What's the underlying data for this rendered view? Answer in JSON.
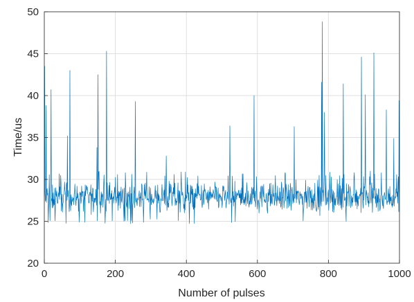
{
  "chart_data": {
    "type": "line",
    "title": "",
    "xlabel": "Number of pulses",
    "ylabel": "Time/us",
    "xlim": [
      0,
      1000
    ],
    "ylim": [
      20,
      50
    ],
    "xticks": [
      0,
      200,
      400,
      600,
      800,
      1000
    ],
    "yticks": [
      20,
      25,
      30,
      35,
      40,
      45,
      50
    ],
    "xtick_labels": [
      "0",
      "200",
      "400",
      "600",
      "800",
      "1000"
    ],
    "ytick_labels": [
      "20",
      "25",
      "30",
      "35",
      "40",
      "45",
      "50"
    ],
    "grid": true,
    "series_color": "#0072BD",
    "series": [
      {
        "n_points": 1000,
        "baseline_range": [
          24.7,
          31
        ],
        "peaks": [
          {
            "x": 1,
            "y": 43.5
          },
          {
            "x": 5,
            "y": 38.8
          },
          {
            "x": 19,
            "y": 40.7
          },
          {
            "x": 65,
            "y": 35.2
          },
          {
            "x": 72,
            "y": 43.0
          },
          {
            "x": 148,
            "y": 33.8
          },
          {
            "x": 151,
            "y": 42.5
          },
          {
            "x": 175,
            "y": 45.3
          },
          {
            "x": 256,
            "y": 39.3
          },
          {
            "x": 343,
            "y": 32.8
          },
          {
            "x": 522,
            "y": 36.4
          },
          {
            "x": 590,
            "y": 40.0
          },
          {
            "x": 703,
            "y": 36.3
          },
          {
            "x": 780,
            "y": 41.6
          },
          {
            "x": 782,
            "y": 48.8
          },
          {
            "x": 788,
            "y": 38.0
          },
          {
            "x": 841,
            "y": 41.4
          },
          {
            "x": 892,
            "y": 44.6
          },
          {
            "x": 903,
            "y": 40.1
          },
          {
            "x": 927,
            "y": 45.1
          },
          {
            "x": 962,
            "y": 38.3
          },
          {
            "x": 983,
            "y": 34.9
          },
          {
            "x": 998,
            "y": 39.4
          }
        ]
      }
    ]
  }
}
